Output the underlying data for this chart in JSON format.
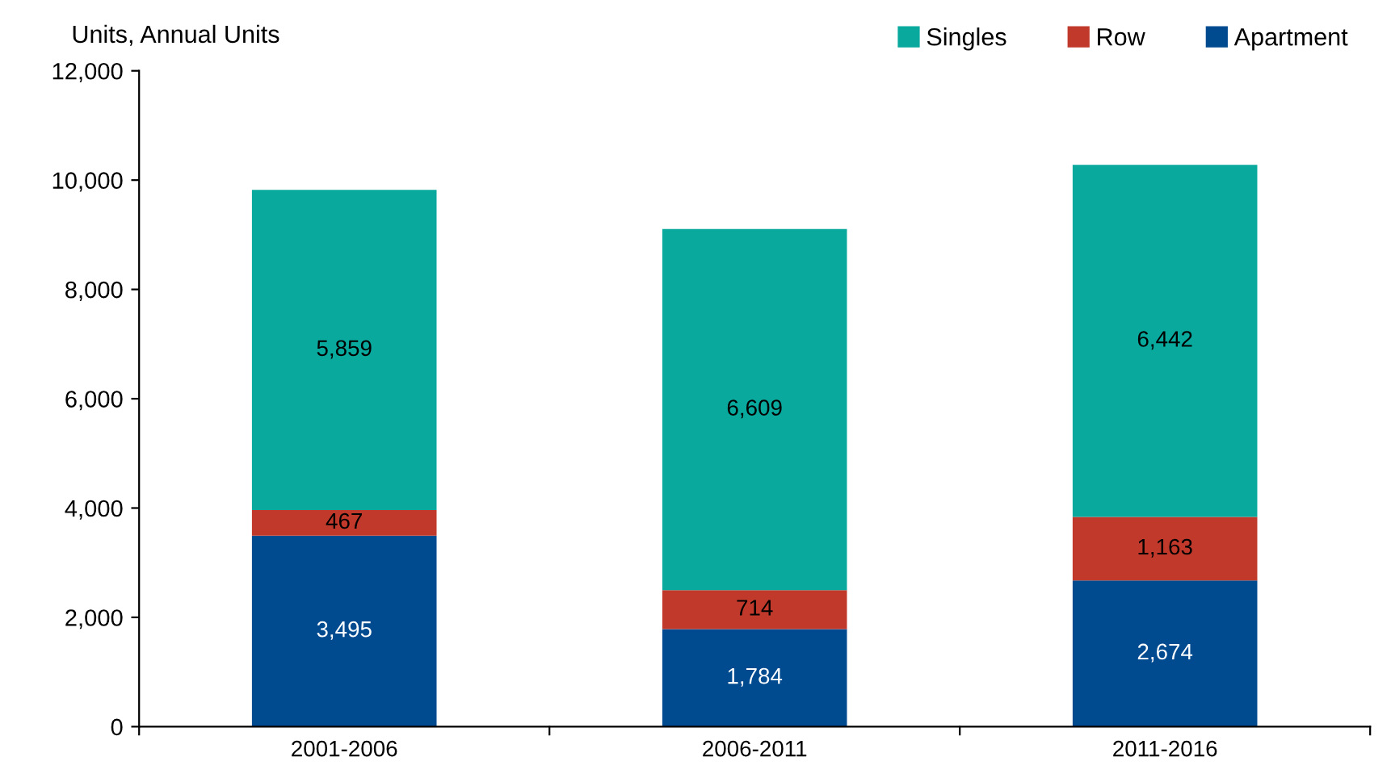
{
  "chart_data": {
    "type": "bar",
    "stacked": true,
    "ylabel": "Units, Annual Units",
    "categories": [
      "2001-2006",
      "2006-2011",
      "2011-2016"
    ],
    "series": [
      {
        "name": "Apartment",
        "color": "#004a8f",
        "values": [
          3495,
          1784,
          2674
        ],
        "value_labels": [
          "3,495",
          "1,784",
          "2,674"
        ]
      },
      {
        "name": "Row",
        "color": "#c0392b",
        "values": [
          467,
          714,
          1163
        ],
        "value_labels": [
          "467",
          "714",
          "1,163"
        ]
      },
      {
        "name": "Singles",
        "color": "#0aa99e",
        "values": [
          5859,
          6609,
          6442
        ],
        "value_labels": [
          "5,859",
          "6,609",
          "6,442"
        ]
      }
    ],
    "ylim": [
      0,
      12000
    ],
    "yticks": [
      {
        "value": 0,
        "label": "0"
      },
      {
        "value": 2000,
        "label": "2,000"
      },
      {
        "value": 4000,
        "label": "4,000"
      },
      {
        "value": 6000,
        "label": "6,000"
      },
      {
        "value": 8000,
        "label": "8,000"
      },
      {
        "value": 10000,
        "label": "10,000"
      },
      {
        "value": 12000,
        "label": "12,000"
      }
    ],
    "legend": "top right",
    "grid": false
  }
}
